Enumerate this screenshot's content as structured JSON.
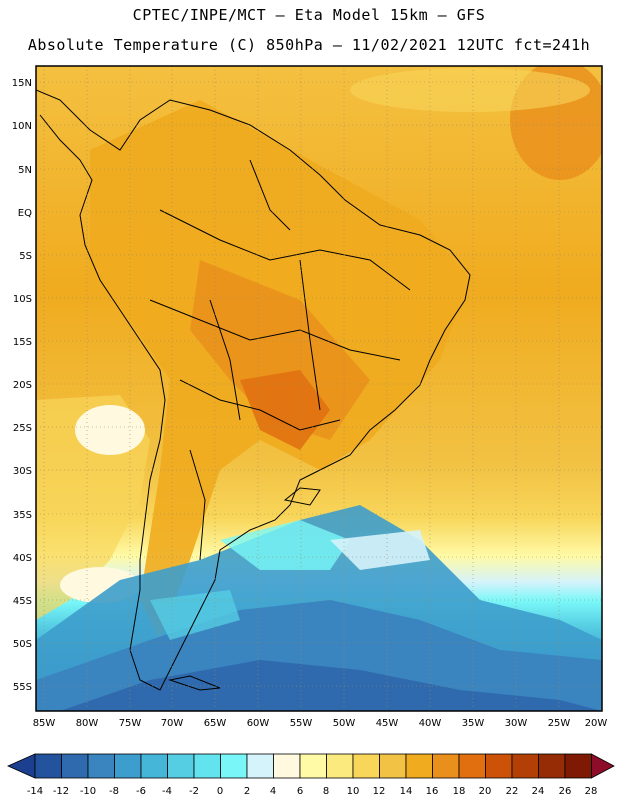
{
  "header": {
    "line1": "CPTEC/INPE/MCT –  Eta Model 15km – GFS",
    "line2": "Absolute Temperature (C) 850hPa – 11/02/2021 12UTC fct=241h"
  },
  "map": {
    "lat_labels": [
      "15N",
      "10N",
      "5N",
      "EQ",
      "5S",
      "10S",
      "15S",
      "20S",
      "25S",
      "30S",
      "35S",
      "40S",
      "45S",
      "50S",
      "55S"
    ],
    "lon_labels": [
      "85W",
      "80W",
      "75W",
      "70W",
      "65W",
      "60W",
      "55W",
      "50W",
      "45W",
      "40W",
      "35W",
      "30W",
      "25W",
      "20W"
    ]
  },
  "colorbar": {
    "labels": [
      "-14",
      "-12",
      "-10",
      "-8",
      "-6",
      "-4",
      "-2",
      "0",
      "2",
      "4",
      "6",
      "8",
      "10",
      "12",
      "14",
      "16",
      "18",
      "20",
      "22",
      "24",
      "26",
      "28"
    ],
    "colors": [
      "#1c3f8f",
      "#24539e",
      "#2f6aae",
      "#3a84bf",
      "#3d9dcc",
      "#45b6d8",
      "#55cde3",
      "#63e3ee",
      "#79f7f8",
      "#d5f3fb",
      "#fff9df",
      "#fffaa6",
      "#fbea7d",
      "#f8d65a",
      "#f2c244",
      "#f0ab1f",
      "#e98f1c",
      "#e16e0f",
      "#cc5208",
      "#b23f05",
      "#952c05",
      "#7e1a03",
      "#8d0c2a"
    ]
  }
}
